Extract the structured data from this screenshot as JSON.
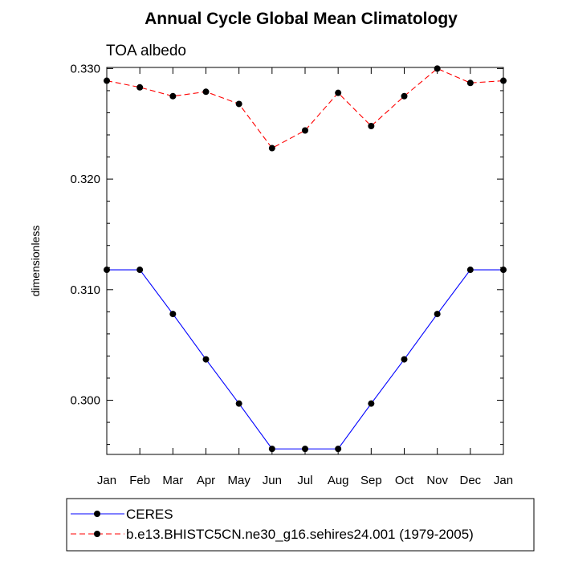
{
  "chart_data": {
    "type": "line",
    "title": "Annual Cycle Global Mean Climatology",
    "subtitle": "TOA albedo",
    "xlabel": "",
    "ylabel": "dimensionless",
    "categories": [
      "Jan",
      "Feb",
      "Mar",
      "Apr",
      "May",
      "Jun",
      "Jul",
      "Aug",
      "Sep",
      "Oct",
      "Nov",
      "Dec",
      "Jan"
    ],
    "ylim": [
      0.2951,
      0.3301
    ],
    "yticks": [
      "0.300",
      "0.310",
      "0.320",
      "0.330"
    ],
    "ytick_values": [
      0.3,
      0.31,
      0.32,
      0.33
    ],
    "series": [
      {
        "name": "CERES",
        "color": "#0000ff",
        "dash": "solid",
        "values": [
          0.3118,
          0.3118,
          0.3078,
          0.3037,
          0.2997,
          0.2956,
          0.2956,
          0.2956,
          0.2997,
          0.3037,
          0.3078,
          0.3118,
          0.3118
        ]
      },
      {
        "name": "b.e13.BHISTC5CN.ne30_g16.sehires24.001 (1979-2005)",
        "color": "#ff0000",
        "dash": "dashed",
        "values": [
          0.3289,
          0.3283,
          0.3275,
          0.3279,
          0.3268,
          0.3228,
          0.3244,
          0.3278,
          0.3248,
          0.3275,
          0.33,
          0.3287,
          0.3289
        ]
      }
    ],
    "legend": "bottom"
  }
}
